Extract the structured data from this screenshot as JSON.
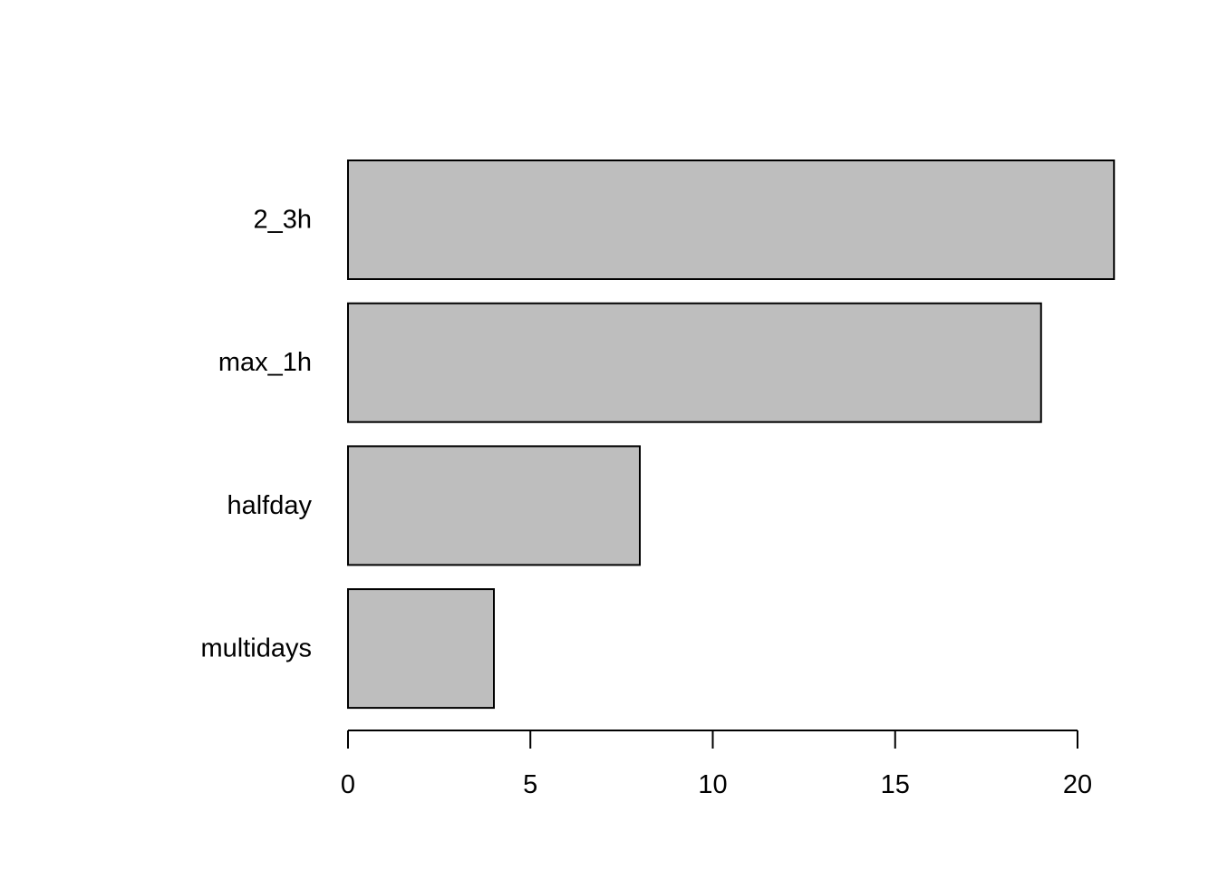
{
  "chart_data": {
    "type": "bar",
    "orientation": "horizontal",
    "title": "",
    "xlabel": "",
    "ylabel": "",
    "categories": [
      "2_3h",
      "max_1h",
      "halfday",
      "multidays"
    ],
    "values": [
      21,
      19,
      8,
      4
    ],
    "xlim": [
      0,
      21
    ],
    "x_ticks": [
      0,
      5,
      10,
      15,
      20
    ],
    "grid": false,
    "legend": "none",
    "bar_color": "#bebebe",
    "bar_border_color": "#000000"
  }
}
